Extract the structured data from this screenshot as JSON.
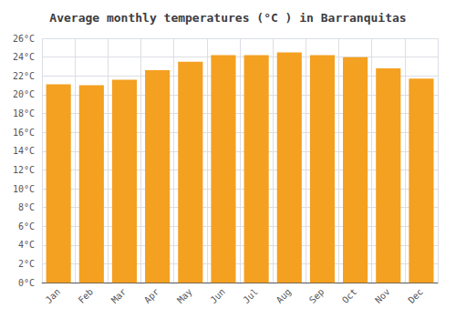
{
  "chart_data": {
    "type": "bar",
    "title": "Average monthly temperatures (°C ) in Barranquitas",
    "categories": [
      "Jan",
      "Feb",
      "Mar",
      "Apr",
      "May",
      "Jun",
      "Jul",
      "Aug",
      "Sep",
      "Oct",
      "Nov",
      "Dec"
    ],
    "values": [
      21.1,
      21.0,
      21.6,
      22.6,
      23.5,
      24.2,
      24.2,
      24.5,
      24.2,
      24.0,
      22.8,
      21.7
    ],
    "color": "#F4A020",
    "ylim": [
      0,
      26
    ],
    "yticks": [
      {
        "value": 0,
        "label": "0°C"
      },
      {
        "value": 2,
        "label": "2°C"
      },
      {
        "value": 4,
        "label": "4°C"
      },
      {
        "value": 6,
        "label": "6°C"
      },
      {
        "value": 8,
        "label": "8°C"
      },
      {
        "value": 10,
        "label": "10°C"
      },
      {
        "value": 12,
        "label": "12°C"
      },
      {
        "value": 14,
        "label": "14°C"
      },
      {
        "value": 16,
        "label": "16°C"
      },
      {
        "value": 18,
        "label": "18°C"
      },
      {
        "value": 20,
        "label": "20°C"
      },
      {
        "value": 22,
        "label": "22°C"
      },
      {
        "value": 24,
        "label": "24°C"
      },
      {
        "value": 26,
        "label": "26°C"
      }
    ],
    "grid": true
  }
}
